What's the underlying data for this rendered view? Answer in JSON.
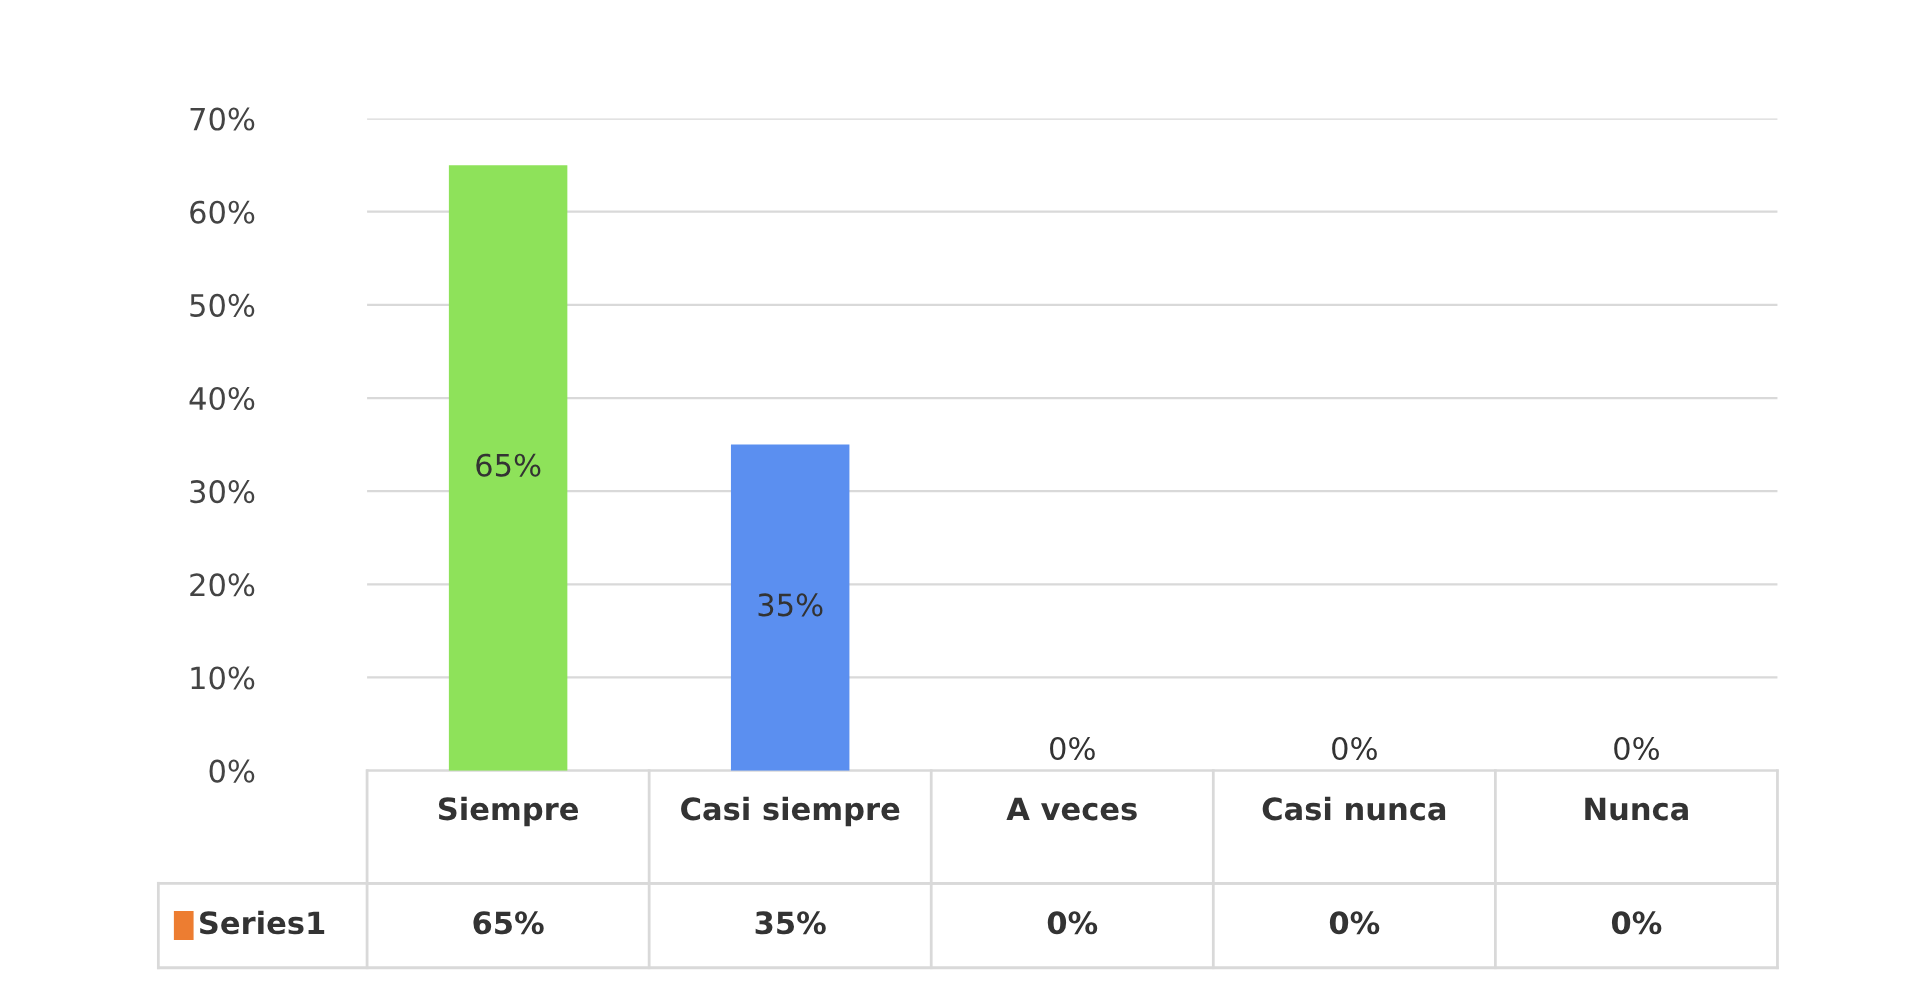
{
  "chart_data": {
    "type": "bar",
    "categories": [
      "Siempre",
      "Casi siempre",
      "A veces",
      "Casi nunca",
      "Nunca"
    ],
    "series": [
      {
        "name": "Series1",
        "color": "#ed7d31",
        "colors": [
          "#8ee25a",
          "#5b8ff0",
          "#c8104e",
          "#c55a11",
          "#c9862a"
        ],
        "values": [
          65,
          35,
          0,
          0,
          0
        ],
        "value_labels": [
          "65%",
          "35%",
          "0%",
          "0%",
          "0%"
        ]
      }
    ],
    "ylim": [
      0,
      70
    ],
    "yticks": [
      {
        "value": 0,
        "label": "0%"
      },
      {
        "value": 10,
        "label": "10%"
      },
      {
        "value": 20,
        "label": "20%"
      },
      {
        "value": 30,
        "label": "30%"
      },
      {
        "value": 40,
        "label": "40%"
      },
      {
        "value": 50,
        "label": "50%"
      },
      {
        "value": 60,
        "label": "60%"
      },
      {
        "value": 70,
        "label": "70%"
      }
    ],
    "grid": "y"
  }
}
